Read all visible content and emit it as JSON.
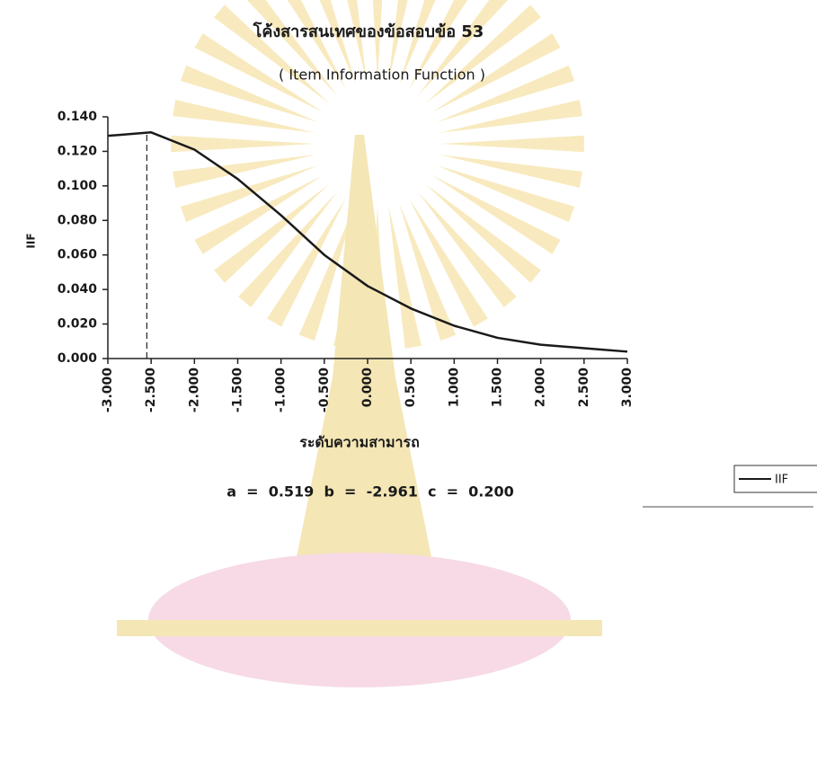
{
  "chart_data": {
    "type": "line",
    "title": "โค้งสารสนเทศของข้อสอบข้อ 53",
    "subtitle": "( Item Information Function )",
    "x_label": "ระดับความสามารถ",
    "y_label": "IIF",
    "annotation": "a  =  0.519  b  =  -2.961  c  =  0.200",
    "x": [
      -3,
      -2.5,
      -2,
      -1.5,
      -1,
      -0.5,
      0,
      0.5,
      1,
      1.5,
      2,
      2.5,
      3
    ],
    "series": [
      {
        "name": "IIF",
        "color": "#1a1a1a",
        "values": [
          0.129,
          0.131,
          0.121,
          0.104,
          0.083,
          0.06,
          0.042,
          0.029,
          0.019,
          0.012,
          0.008,
          0.006,
          0.004
        ]
      }
    ],
    "vline_x": -2.55,
    "xlim": [
      -3,
      3
    ],
    "xticks": [
      {
        "value": -3,
        "label": "-3.000"
      },
      {
        "value": -2.5,
        "label": "-2.500"
      },
      {
        "value": -2,
        "label": "-2.000"
      },
      {
        "value": -1.5,
        "label": "-1.500"
      },
      {
        "value": -1,
        "label": "-1.000"
      },
      {
        "value": -0.5,
        "label": "-0.500"
      },
      {
        "value": 0,
        "label": "0.000"
      },
      {
        "value": 0.5,
        "label": "0.500"
      },
      {
        "value": 1,
        "label": "1.000"
      },
      {
        "value": 1.5,
        "label": "1.500"
      },
      {
        "value": 2,
        "label": "2.000"
      },
      {
        "value": 2.5,
        "label": "2.500"
      },
      {
        "value": 3,
        "label": "3.000"
      }
    ],
    "ylim": [
      0,
      0.14
    ],
    "yticks": [
      {
        "value": 0,
        "label": "0.000"
      },
      {
        "value": 0.02,
        "label": "0.020"
      },
      {
        "value": 0.04,
        "label": "0.040"
      },
      {
        "value": 0.06,
        "label": "0.060"
      },
      {
        "value": 0.08,
        "label": "0.080"
      },
      {
        "value": 0.1,
        "label": "0.100"
      },
      {
        "value": 0.12,
        "label": "0.120"
      },
      {
        "value": 0.14,
        "label": "0.140"
      }
    ],
    "legend": "right"
  }
}
